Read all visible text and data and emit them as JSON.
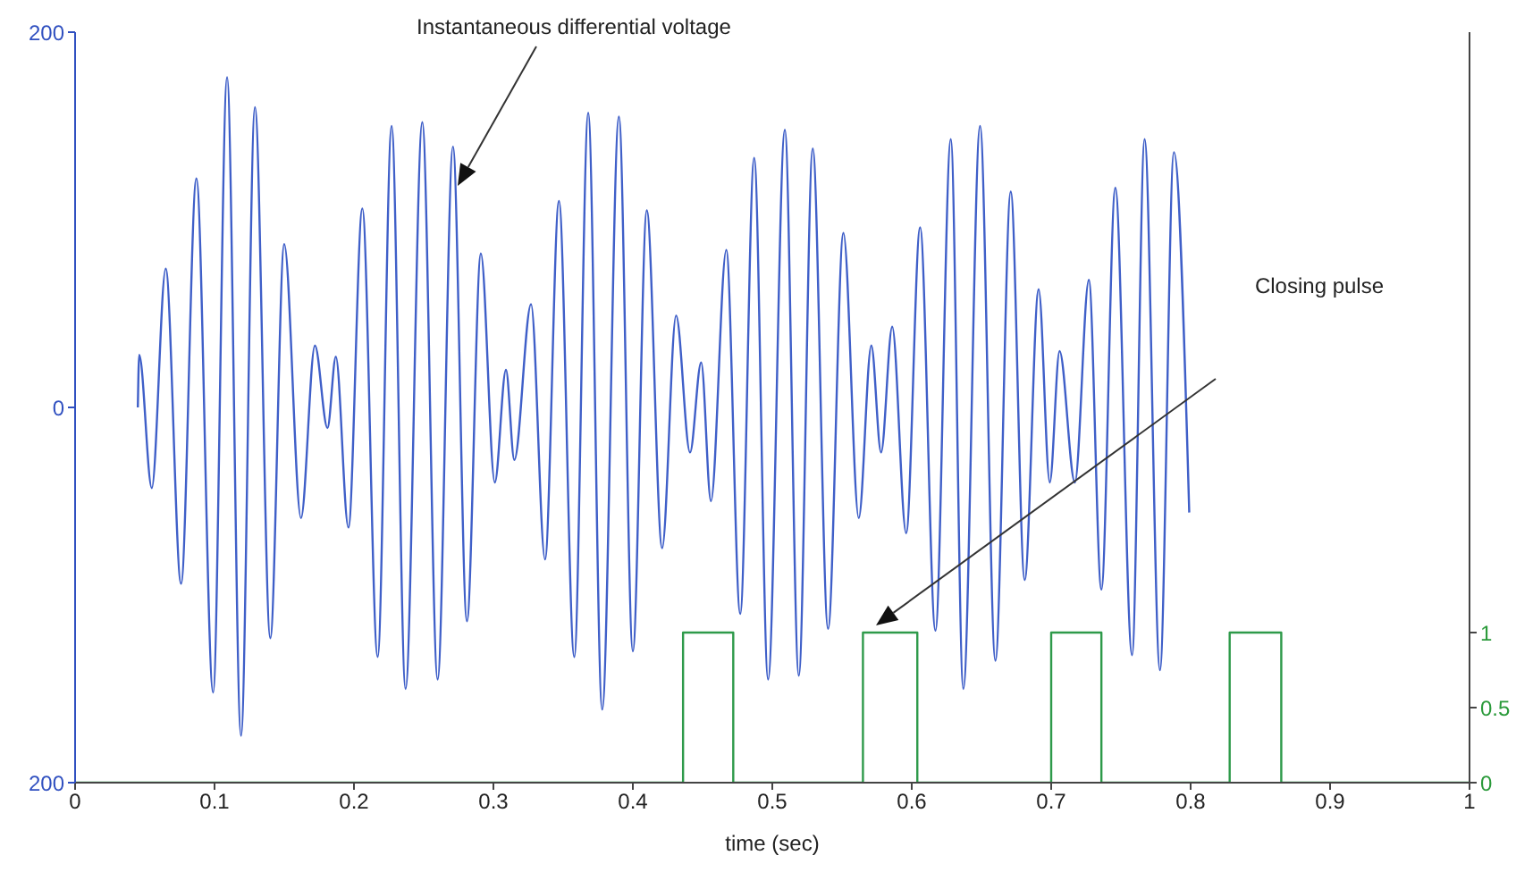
{
  "chart_data": {
    "type": "line",
    "xlabel": "time (sec)",
    "xlim": [
      0,
      1
    ],
    "xticks": [
      0,
      0.1,
      0.2,
      0.3,
      0.4,
      0.5,
      0.6,
      0.7,
      0.8,
      0.9,
      1
    ],
    "ylim": [
      -200,
      200
    ],
    "yticks": [
      {
        "value": -200,
        "label": "200"
      },
      0,
      200
    ],
    "y2lim": [
      0,
      5
    ],
    "y2ticks": [
      0,
      0.5,
      1
    ],
    "series": [
      {
        "color": "#3f5fc8",
        "x": [
          0.045,
          0.046,
          0.055,
          0.065,
          0.076,
          0.087,
          0.099,
          0.109,
          0.119,
          0.129,
          0.14,
          0.15,
          0.162,
          0.172,
          0.181,
          0.187,
          0.196,
          0.206,
          0.217,
          0.227,
          0.237,
          0.249,
          0.26,
          0.271,
          0.281,
          0.291,
          0.301,
          0.309,
          0.315,
          0.327,
          0.337,
          0.347,
          0.358,
          0.368,
          0.378,
          0.39,
          0.4,
          0.41,
          0.421,
          0.431,
          0.441,
          0.449,
          0.456,
          0.467,
          0.477,
          0.487,
          0.497,
          0.509,
          0.519,
          0.529,
          0.54,
          0.551,
          0.562,
          0.571,
          0.578,
          0.586,
          0.596,
          0.606,
          0.617,
          0.628,
          0.637,
          0.649,
          0.66,
          0.671,
          0.681,
          0.691,
          0.699,
          0.706,
          0.717,
          0.727,
          0.736,
          0.746,
          0.758,
          0.767,
          0.778,
          0.788,
          0.799
        ],
        "values": [
          0,
          28,
          -43,
          74,
          -94,
          122,
          -152,
          176,
          -175,
          160,
          -123,
          87,
          -59,
          33,
          -11,
          27,
          -64,
          106,
          -133,
          150,
          -150,
          152,
          -145,
          139,
          -114,
          82,
          -40,
          20,
          -28,
          55,
          -81,
          110,
          -133,
          157,
          -161,
          155,
          -130,
          105,
          -75,
          49,
          -24,
          24,
          -50,
          84,
          -110,
          133,
          -145,
          148,
          -143,
          138,
          -118,
          93,
          -59,
          33,
          -24,
          43,
          -67,
          96,
          -119,
          143,
          -150,
          150,
          -135,
          115,
          -92,
          63,
          -40,
          30,
          -40,
          68,
          -97,
          117,
          -132,
          143,
          -140,
          136,
          -56
        ]
      },
      {
        "type": "step",
        "axis": "y2",
        "color": "#2e9a4a",
        "x": [
          0,
          0.436,
          0.472,
          0.565,
          0.604,
          0.7,
          0.736,
          0.828,
          0.865,
          1
        ],
        "values": [
          0,
          1,
          0,
          1,
          0,
          1,
          0,
          1,
          0,
          0
        ]
      }
    ],
    "annotations": [
      "Instantaneous differential voltage",
      "Closing pulse"
    ]
  }
}
